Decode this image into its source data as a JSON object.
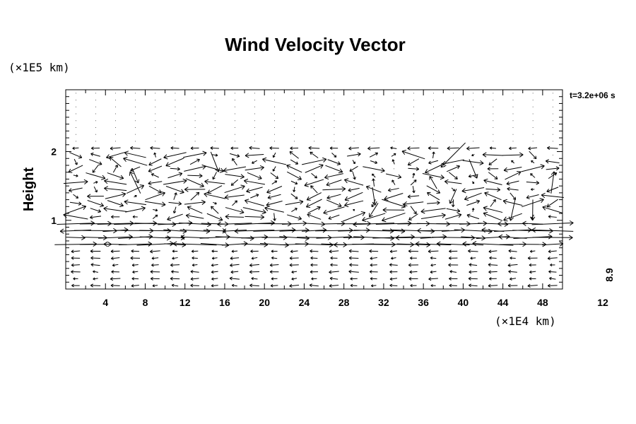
{
  "chart_data": {
    "type": "vector-field",
    "title": "Wind Velocity Vector",
    "ylabel": "Height",
    "y_unit": "(×1E5 km)",
    "x_unit": "(×1E4 km)",
    "time_label": "t=3.2e+06 s",
    "reference_vector_label": "8.9",
    "reference_vector_tick": "12",
    "xlim": [
      0,
      50
    ],
    "ylim": [
      0,
      2.9
    ],
    "x_ticks": [
      "4",
      "8",
      "12",
      "16",
      "20",
      "24",
      "28",
      "32",
      "36",
      "40",
      "44",
      "48"
    ],
    "y_ticks": [
      "1",
      "2"
    ],
    "grid": {
      "nx": 25,
      "ny": 29,
      "x_start": 0,
      "x_step": 2,
      "y_start": 0.05,
      "y_step": 0.1
    },
    "vector_bands": [
      {
        "y_range": [
          0.05,
          0.55
        ],
        "description": "weak westward flow",
        "u_mean": -0.4,
        "v_mean": 0.0
      },
      {
        "y_range": [
          0.65,
          0.95
        ],
        "description": "strong eastward jet",
        "u_mean": 1.2,
        "v_mean": 0.0
      },
      {
        "y_range": [
          1.0,
          1.95
        ],
        "description": "turbulent mixed flow",
        "u_mean": 0.3,
        "v_mean": 0.0
      },
      {
        "y_range": [
          2.0,
          2.1
        ],
        "description": "weak westward flow",
        "u_mean": -0.5,
        "v_mean": 0.0
      },
      {
        "y_range": [
          2.15,
          2.85
        ],
        "description": "near-zero flow",
        "u_mean": 0.0,
        "v_mean": 0.0
      }
    ]
  }
}
